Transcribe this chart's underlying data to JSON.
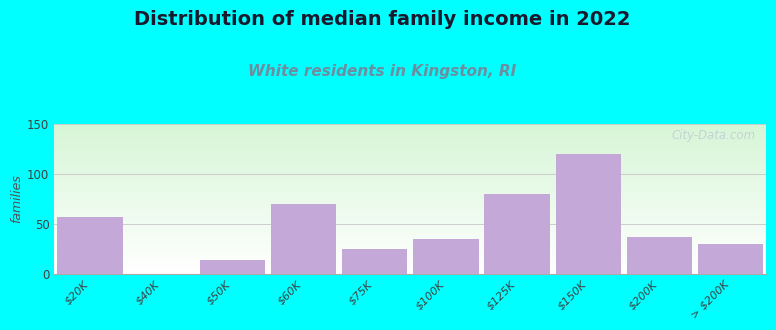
{
  "title": "Distribution of median family income in 2022",
  "subtitle": "White residents in Kingston, RI",
  "ylabel": "families",
  "background_color": "#00FFFF",
  "bar_color": "#C4A8D8",
  "plot_bg_top_left": "#d6f5d6",
  "plot_bg_bottom": "#f8f8ff",
  "categories": [
    "$20K",
    "$40K",
    "$50K",
    "$60K",
    "$75K",
    "$100K",
    "$125K",
    "$150K",
    "$200K",
    "> $200K"
  ],
  "values": [
    57,
    0,
    14,
    70,
    25,
    35,
    80,
    120,
    37,
    30
  ],
  "ylim": [
    0,
    150
  ],
  "yticks": [
    0,
    50,
    100,
    150
  ],
  "bar_width": 0.92,
  "title_fontsize": 14,
  "subtitle_fontsize": 11,
  "subtitle_color": "#6B8FA0",
  "watermark": "City-Data.com"
}
